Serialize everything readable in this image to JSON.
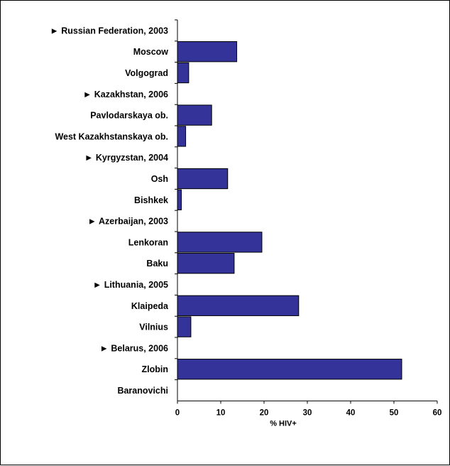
{
  "chart_data": {
    "type": "bar",
    "orientation": "horizontal",
    "categories": [
      "► Russian Federation, 2003",
      "Moscow",
      "Volgograd",
      "► Kazakhstan, 2006",
      "Pavlodarskaya ob.",
      "West Kazakhstanskaya ob.",
      "► Kyrgyzstan, 2004",
      "Osh",
      "Bishkek",
      "► Azerbaijan, 2003",
      "Lenkoran",
      "Baku",
      "► Lithuania, 2005",
      "Klaipeda",
      "Vilnius",
      "► Belarus, 2006",
      "Zlobin",
      "Baranovichi"
    ],
    "values": [
      null,
      13.7,
      2.6,
      null,
      7.9,
      1.9,
      null,
      11.6,
      0.9,
      null,
      19.5,
      13.1,
      null,
      28.0,
      3.1,
      null,
      51.8,
      0.0
    ],
    "xlabel": "% HIV+",
    "xlim": [
      0,
      60
    ],
    "xticks": [
      "0",
      "10",
      "20",
      "30",
      "40",
      "50",
      "60"
    ],
    "bar_color": "#333399",
    "grid": false
  }
}
